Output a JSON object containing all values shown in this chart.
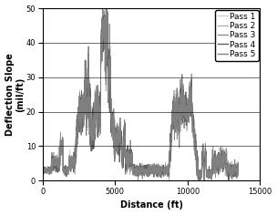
{
  "title": "",
  "xlabel": "Distance (ft)",
  "ylabel": "Deflection Slope\n(mil/ft)",
  "xlim": [
    0,
    15000
  ],
  "ylim": [
    0,
    50
  ],
  "xticks": [
    0,
    5000,
    10000,
    15000
  ],
  "yticks": [
    0,
    10,
    20,
    30,
    40,
    50
  ],
  "pass_colors": [
    "#d0d0d0",
    "#b0b0b0",
    "#909090",
    "#606060",
    "#808080"
  ],
  "pass_labels": [
    "Pass 1",
    "Pass 2",
    "Pass 3",
    "Pass 4",
    "Pass 5"
  ],
  "legend_fontsize": 6.5,
  "axis_fontsize": 7,
  "tick_fontsize": 6,
  "linewidth": 0.6,
  "background_color": "#ffffff"
}
